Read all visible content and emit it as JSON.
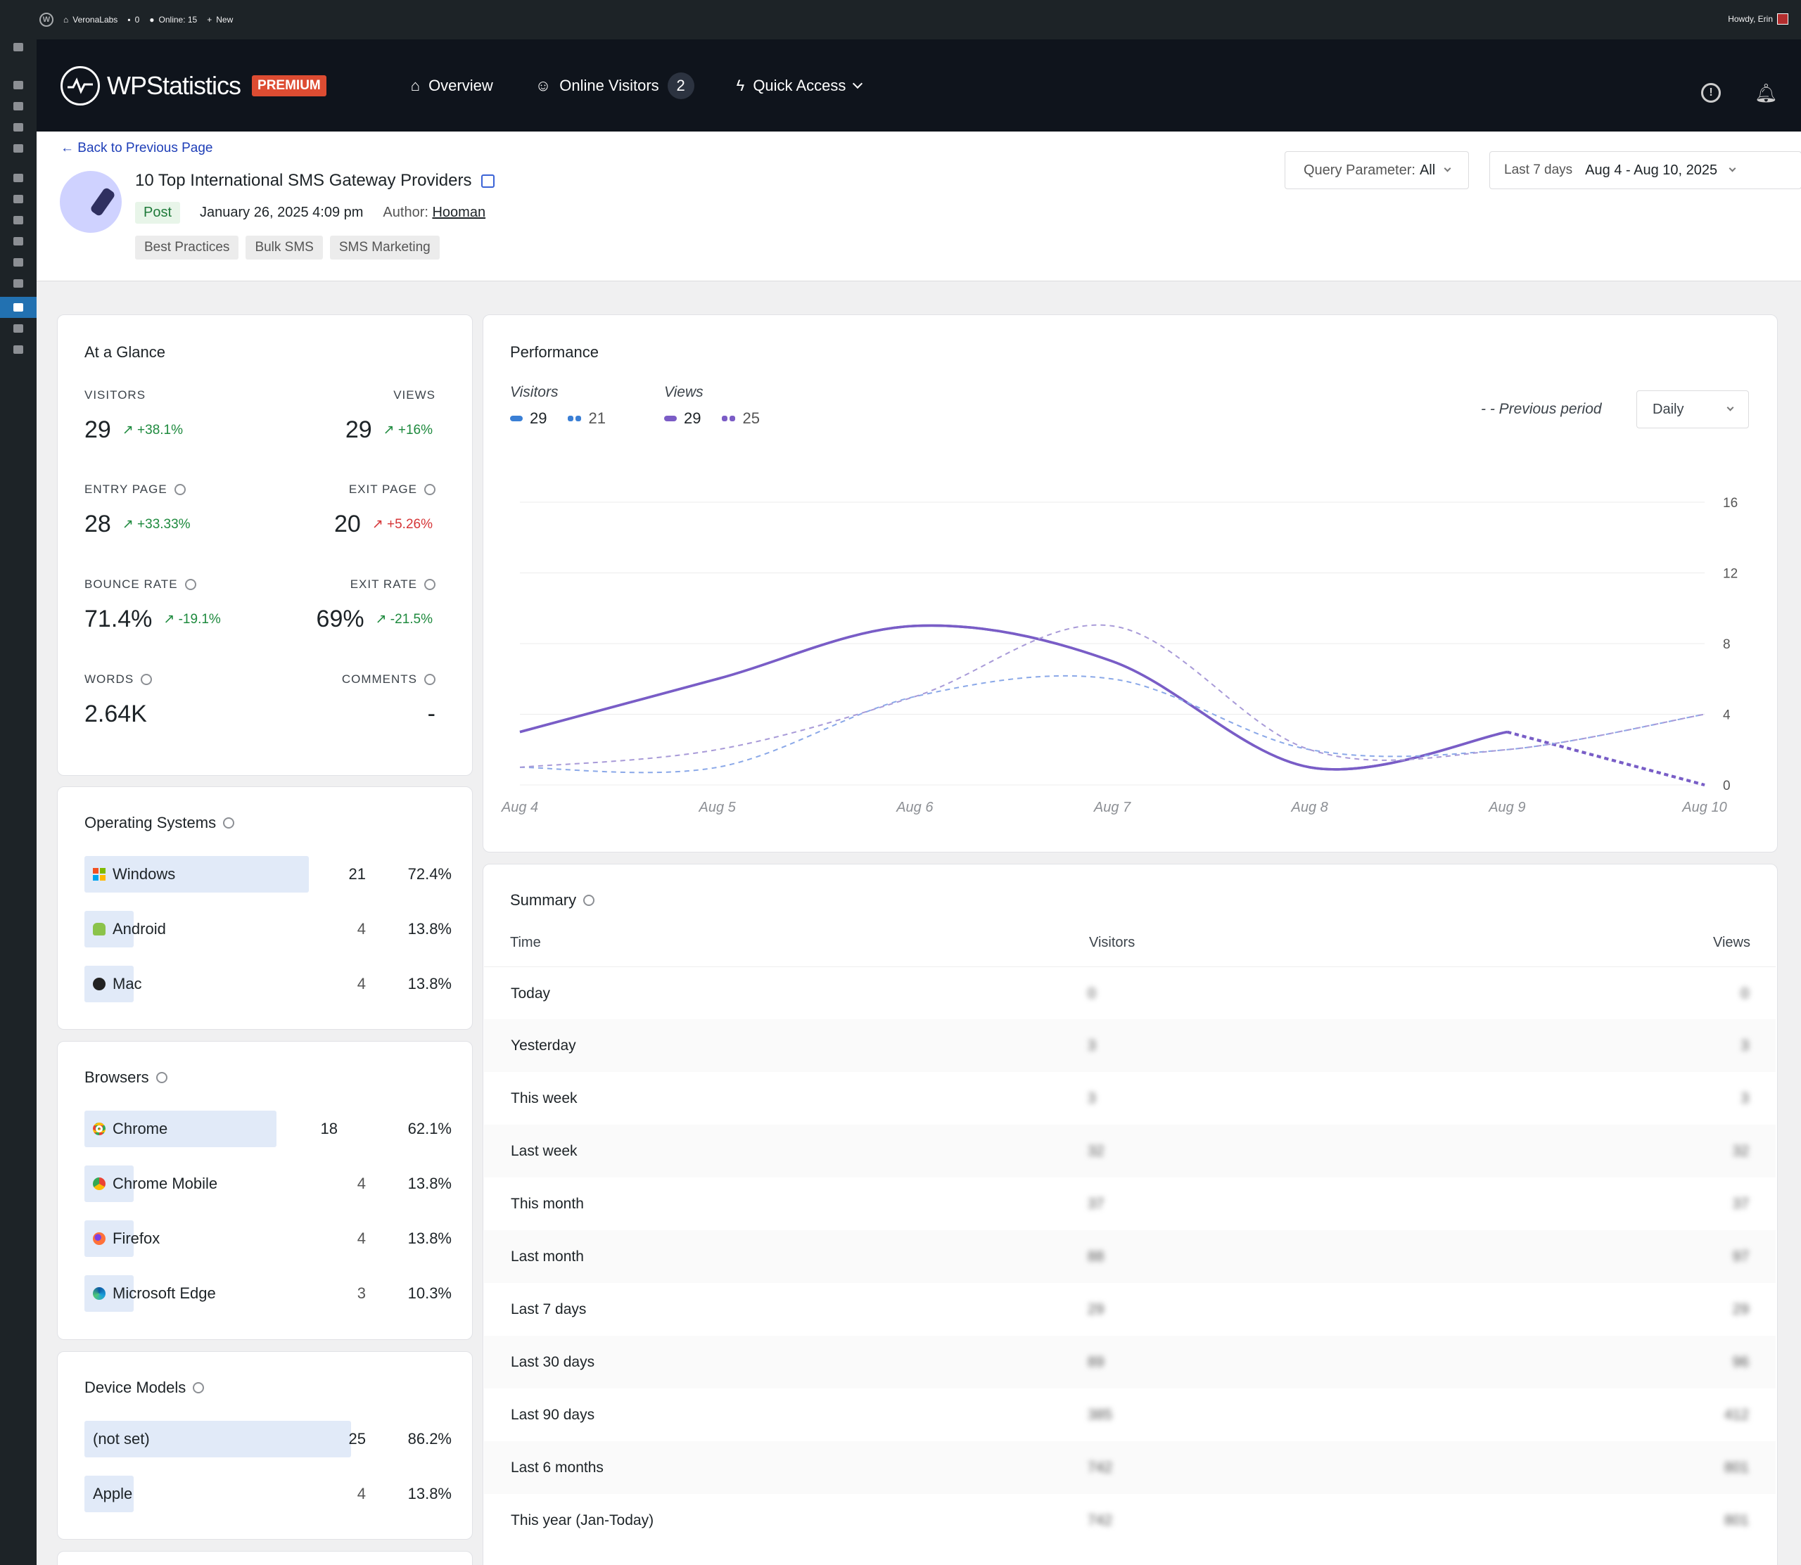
{
  "adminbar": {
    "site": "VeronaLabs",
    "comments": "0",
    "online": "Online: 15",
    "new": "New",
    "howdy": "Howdy, Erin"
  },
  "brand": {
    "name": "WPStatistics",
    "badge": "PREMIUM",
    "accent": "#dd4c32"
  },
  "nav": {
    "overview": "Overview",
    "online": "Online Visitors",
    "online_count": "2",
    "quick": "Quick Access"
  },
  "header": {
    "back": "Back to Previous Page",
    "title": "10 Top International SMS Gateway Providers",
    "type": "Post",
    "date": "January 26, 2025 4:09 pm",
    "author_label": "Author:",
    "author": "Hooman",
    "tags": [
      "Best Practices",
      "Bulk SMS",
      "SMS Marketing"
    ],
    "query_label": "Query Parameter:",
    "query_value": "All",
    "range_label": "Last 7 days",
    "range_value": "Aug 4 - Aug 10, 2025"
  },
  "glance": {
    "title": "At a Glance",
    "visitors": {
      "label": "VISITORS",
      "value": "29",
      "change": "+38.1%"
    },
    "views": {
      "label": "VIEWS",
      "value": "29",
      "change": "+16%"
    },
    "entry": {
      "label": "ENTRY PAGE",
      "value": "28",
      "change": "+33.33%"
    },
    "exit": {
      "label": "EXIT PAGE",
      "value": "20",
      "change": "+5.26%"
    },
    "bounce": {
      "label": "BOUNCE RATE",
      "value": "71.4%",
      "change": "-19.1%"
    },
    "exitrate": {
      "label": "EXIT RATE",
      "value": "69%",
      "change": "-21.5%"
    },
    "words": {
      "label": "WORDS",
      "value": "2.64K"
    },
    "comments": {
      "label": "COMMENTS",
      "value": "-"
    }
  },
  "os": {
    "title": "Operating Systems",
    "items": [
      {
        "name": "Windows",
        "count": "21",
        "pct": "72.4%",
        "share": 0.724,
        "icon": "windows-icon"
      },
      {
        "name": "Android",
        "count": "4",
        "pct": "13.8%",
        "share": 0.138,
        "icon": "android-icon"
      },
      {
        "name": "Mac",
        "count": "4",
        "pct": "13.8%",
        "share": 0.138,
        "icon": "apple-icon"
      }
    ]
  },
  "browsers": {
    "title": "Browsers",
    "items": [
      {
        "name": "Chrome",
        "count": "18",
        "pct": "62.1%",
        "share": 0.621,
        "icon": "chrome-icon"
      },
      {
        "name": "Chrome Mobile",
        "count": "4",
        "pct": "13.8%",
        "share": 0.138,
        "icon": "chrome-icon"
      },
      {
        "name": "Firefox",
        "count": "4",
        "pct": "13.8%",
        "share": 0.138,
        "icon": "firefox-icon"
      },
      {
        "name": "Microsoft Edge",
        "count": "3",
        "pct": "10.3%",
        "share": 0.103,
        "icon": "edge-icon"
      }
    ]
  },
  "devices": {
    "title": "Device Models",
    "items": [
      {
        "name": "(not set)",
        "count": "25",
        "pct": "86.2%",
        "share": 0.862
      },
      {
        "name": "Apple",
        "count": "4",
        "pct": "13.8%",
        "share": 0.138
      }
    ]
  },
  "performance": {
    "title": "Performance",
    "visitors_label": "Visitors",
    "visitors_now": "29",
    "visitors_prev": "21",
    "views_label": "Views",
    "views_now": "29",
    "views_prev": "25",
    "prev_label": "- - Previous period",
    "interval": "Daily"
  },
  "chart_data": {
    "type": "line",
    "x": [
      "Aug 4",
      "Aug 5",
      "Aug 6",
      "Aug 7",
      "Aug 8",
      "Aug 9",
      "Aug 10"
    ],
    "ylim": [
      0,
      16
    ],
    "yticks": [
      0,
      4,
      8,
      12,
      16
    ],
    "series": [
      {
        "name": "Visitors",
        "values": [
          3,
          6,
          9,
          7,
          1,
          3,
          0
        ],
        "color": "#3a7fd5",
        "dashed": false
      },
      {
        "name": "Views",
        "values": [
          3,
          6,
          9,
          7,
          1,
          3,
          0
        ],
        "color": "#7b5cc6",
        "dashed": false
      },
      {
        "name": "Visitors",
        "values": [
          1,
          1,
          5,
          6,
          2,
          2,
          4
        ],
        "color": "#8aa8e8",
        "dashed": true
      },
      {
        "name": "Views",
        "values": [
          1,
          2,
          5,
          9,
          2,
          2,
          4
        ],
        "color": "#a89ad8",
        "dashed": true
      }
    ],
    "colors": {
      "visitors": "#3a7fd5",
      "views": "#7b5cc6"
    }
  },
  "summary": {
    "title": "Summary",
    "columns": [
      "Time",
      "Visitors",
      "Views"
    ],
    "rows": [
      {
        "time": "Today",
        "visitors": "0",
        "views": "0"
      },
      {
        "time": "Yesterday",
        "visitors": "3",
        "views": "3"
      },
      {
        "time": "This week",
        "visitors": "3",
        "views": "3"
      },
      {
        "time": "Last week",
        "visitors": "32",
        "views": "32"
      },
      {
        "time": "This month",
        "visitors": "37",
        "views": "37"
      },
      {
        "time": "Last month",
        "visitors": "88",
        "views": "97"
      },
      {
        "time": "Last 7 days",
        "visitors": "29",
        "views": "29"
      },
      {
        "time": "Last 30 days",
        "visitors": "89",
        "views": "96"
      },
      {
        "time": "Last 90 days",
        "visitors": "385",
        "views": "412"
      },
      {
        "time": "Last 6 months",
        "visitors": "742",
        "views": "801"
      },
      {
        "time": "This year (Jan-Today)",
        "visitors": "742",
        "views": "801"
      }
    ]
  }
}
